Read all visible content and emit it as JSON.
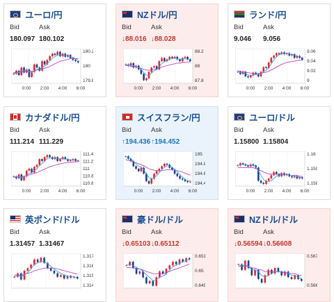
{
  "labels": {
    "bid": "Bid",
    "ask": "Ask"
  },
  "colors": {
    "up_bar": "#e8232b",
    "down_bar": "#1b3f8c",
    "ma_fast": "#3aa0d8",
    "ma_slow": "#c040c0",
    "down_text": "#c0392b",
    "up_text": "#1f74b8"
  },
  "cards": [
    {
      "name": "ユーロ/円",
      "flag": "EU-JP",
      "trend": "neutral",
      "bid": "180.097",
      "ask": "180.102",
      "yticks": [
        "180.2",
        "180",
        "179.8"
      ],
      "xticks": [
        "0:00",
        "2:00",
        "4:00",
        "6:00"
      ],
      "chart_data": {
        "type": "candlestick",
        "ylim": [
          179.75,
          180.3
        ],
        "close": [
          179.9,
          179.95,
          179.88,
          180.0,
          179.92,
          179.97,
          179.85,
          179.93,
          180.05,
          180.0,
          179.95,
          180.1,
          180.05,
          180.12,
          180.18,
          180.22,
          180.2,
          180.25,
          180.18,
          180.22,
          180.17,
          180.2,
          180.15,
          180.12,
          180.1,
          180.08
        ],
        "ma_fast": [
          179.9,
          179.92,
          179.92,
          179.95,
          179.95,
          179.96,
          179.93,
          179.92,
          179.95,
          179.97,
          179.97,
          180.0,
          180.02,
          180.06,
          180.1,
          180.15,
          180.17,
          180.2,
          180.2,
          180.2,
          180.19,
          180.18,
          180.17,
          180.16,
          180.14,
          180.11
        ],
        "ma_slow": [
          179.92,
          179.92,
          179.93,
          179.93,
          179.94,
          179.94,
          179.94,
          179.94,
          179.95,
          179.96,
          179.97,
          179.98,
          179.99,
          180.0,
          180.02,
          180.04,
          180.06,
          180.08,
          180.1,
          180.11,
          180.12,
          180.13,
          180.14,
          180.14,
          180.14,
          180.14
        ]
      }
    },
    {
      "name": "NZドル/円",
      "flag": "NZ-JP",
      "trend": "down",
      "bid": "88.016",
      "ask": "88.028",
      "arrow": "↓",
      "yticks": [
        "88.2",
        "88",
        "87.8"
      ],
      "xticks": [
        "0:00",
        "2:00",
        "4:00",
        "6:00"
      ],
      "chart_data": {
        "type": "candlestick",
        "ylim": [
          87.7,
          88.25
        ],
        "close": [
          88.0,
          87.98,
          88.02,
          87.95,
          87.98,
          87.92,
          87.85,
          87.75,
          87.78,
          87.88,
          87.95,
          87.97,
          87.92,
          88.05,
          88.1,
          88.05,
          88.08,
          88.12,
          88.1,
          88.12,
          88.08,
          88.05,
          88.1,
          88.12,
          88.08,
          88.05
        ],
        "ma_fast": [
          88.0,
          87.99,
          88.0,
          87.98,
          87.97,
          87.95,
          87.92,
          87.87,
          87.83,
          87.83,
          87.86,
          87.9,
          87.92,
          87.97,
          88.01,
          88.04,
          88.06,
          88.08,
          88.09,
          88.1,
          88.09,
          88.08,
          88.08,
          88.09,
          88.08,
          88.07
        ],
        "ma_slow": [
          87.98,
          87.98,
          87.97,
          87.97,
          87.96,
          87.95,
          87.94,
          87.92,
          87.91,
          87.91,
          87.91,
          87.92,
          87.93,
          87.94,
          87.96,
          87.97,
          87.98,
          87.99,
          88.0,
          88.01,
          88.02,
          88.02,
          88.03,
          88.03,
          88.04,
          88.04
        ]
      }
    },
    {
      "name": "ランド/円",
      "flag": "ZA-JP",
      "trend": "neutral",
      "bid": "9.046",
      "ask": "9.056",
      "yticks": [
        "9.06",
        "9.04",
        "9.02",
        "9"
      ],
      "xticks": [
        "0:00",
        "2:00",
        "4:00",
        "6:00"
      ],
      "chart_data": {
        "type": "candlestick",
        "ylim": [
          8.995,
          9.07
        ],
        "close": [
          9.02,
          9.015,
          9.02,
          9.01,
          9.008,
          9.012,
          9.018,
          9.015,
          9.01,
          9.02,
          9.03,
          9.028,
          9.04,
          9.05,
          9.055,
          9.06,
          9.058,
          9.062,
          9.058,
          9.06,
          9.055,
          9.058,
          9.05,
          9.054,
          9.05,
          9.046
        ],
        "ma_fast": [
          9.02,
          9.018,
          9.018,
          9.016,
          9.013,
          9.012,
          9.013,
          9.014,
          9.014,
          9.016,
          9.02,
          9.023,
          9.029,
          9.037,
          9.045,
          9.052,
          9.056,
          9.059,
          9.059,
          9.06,
          9.058,
          9.057,
          9.055,
          9.054,
          9.052,
          9.05
        ],
        "ma_slow": [
          9.022,
          9.021,
          9.02,
          9.019,
          9.018,
          9.017,
          9.017,
          9.017,
          9.016,
          9.017,
          9.018,
          9.019,
          9.021,
          9.024,
          9.027,
          9.03,
          9.033,
          9.036,
          9.038,
          9.04,
          9.041,
          9.042,
          9.043,
          9.044,
          9.045,
          9.045
        ]
      }
    },
    {
      "name": "カナダドル/円",
      "flag": "CA-JP",
      "trend": "neutral",
      "bid": "111.214",
      "ask": "111.229",
      "yticks": [
        "111.4",
        "111.2",
        "111",
        "110.8",
        "110.6"
      ],
      "xticks": [
        "0:00",
        "2:00",
        "4:00",
        "6:00"
      ],
      "chart_data": {
        "type": "candlestick",
        "ylim": [
          110.55,
          111.45
        ],
        "close": [
          110.8,
          110.75,
          110.85,
          110.7,
          110.8,
          110.95,
          111.0,
          110.9,
          111.05,
          111.1,
          111.25,
          111.2,
          111.3,
          111.35,
          111.3,
          111.25,
          111.3,
          111.2,
          111.25,
          111.3,
          111.25,
          111.2,
          111.22,
          111.25,
          111.2,
          111.21
        ],
        "ma_fast": [
          110.8,
          110.78,
          110.8,
          110.77,
          110.78,
          110.83,
          110.88,
          110.9,
          110.95,
          111.0,
          111.08,
          111.13,
          111.2,
          111.26,
          111.28,
          111.28,
          111.29,
          111.27,
          111.26,
          111.26,
          111.25,
          111.24,
          111.23,
          111.23,
          111.22,
          111.21
        ],
        "ma_slow": [
          110.78,
          110.78,
          110.79,
          110.79,
          110.8,
          110.82,
          110.84,
          110.86,
          110.88,
          110.9,
          110.93,
          110.96,
          110.99,
          111.02,
          111.05,
          111.07,
          111.09,
          111.11,
          111.13,
          111.14,
          111.15,
          111.16,
          111.17,
          111.17,
          111.18,
          111.18
        ]
      }
    },
    {
      "name": "スイスフラン/円",
      "flag": "CH-JP",
      "trend": "up",
      "bid": "194.436",
      "ask": "194.452",
      "arrow": "↑",
      "yticks": [
        "195",
        "194.8",
        "194.6",
        "194.4"
      ],
      "xticks": [
        "0:00",
        "2:00",
        "4:00",
        "6:00"
      ],
      "chart_data": {
        "type": "candlestick",
        "ylim": [
          194.35,
          195.05
        ],
        "close": [
          194.95,
          194.9,
          194.85,
          194.75,
          194.7,
          194.65,
          194.72,
          194.6,
          194.45,
          194.4,
          194.5,
          194.6,
          194.65,
          194.7,
          194.75,
          194.8,
          194.78,
          194.72,
          194.68,
          194.6,
          194.55,
          194.5,
          194.48,
          194.45,
          194.43,
          194.44
        ],
        "ma_fast": [
          194.95,
          194.92,
          194.9,
          194.85,
          194.8,
          194.75,
          194.73,
          194.68,
          194.6,
          194.52,
          194.5,
          194.52,
          194.56,
          194.62,
          194.68,
          194.73,
          194.76,
          194.75,
          194.73,
          194.69,
          194.64,
          194.58,
          194.53,
          194.49,
          194.46,
          194.45
        ],
        "ma_slow": [
          194.88,
          194.87,
          194.86,
          194.84,
          194.82,
          194.8,
          194.78,
          194.76,
          194.73,
          194.7,
          194.68,
          194.67,
          194.66,
          194.66,
          194.66,
          194.67,
          194.68,
          194.68,
          194.68,
          194.67,
          194.66,
          194.65,
          194.63,
          194.61,
          194.59,
          194.57
        ]
      }
    },
    {
      "name": "ユーロ/ドル",
      "flag": "EU-US",
      "trend": "neutral",
      "bid": "1.15800",
      "ask": "1.15804",
      "yticks": [
        "1.16",
        "1.159",
        "1.158"
      ],
      "xticks": [
        "0:00",
        "2:00",
        "4:00",
        "6:00"
      ],
      "chart_data": {
        "type": "candlestick",
        "ylim": [
          1.1573,
          1.1605
        ],
        "close": [
          1.1592,
          1.1594,
          1.1593,
          1.1592,
          1.1591,
          1.1593,
          1.1592,
          1.159,
          1.1578,
          1.1576,
          1.1575,
          1.1578,
          1.158,
          1.1583,
          1.1586,
          1.1584,
          1.1582,
          1.1585,
          1.1583,
          1.1584,
          1.1582,
          1.1581,
          1.1582,
          1.158,
          1.1581,
          1.158
        ],
        "ma_fast": [
          1.1592,
          1.1593,
          1.1593,
          1.1593,
          1.1592,
          1.1592,
          1.1592,
          1.1591,
          1.1587,
          1.1583,
          1.1579,
          1.1577,
          1.1577,
          1.1578,
          1.158,
          1.1582,
          1.1583,
          1.1584,
          1.1584,
          1.1584,
          1.1583,
          1.1583,
          1.1582,
          1.1582,
          1.1581,
          1.1581
        ],
        "ma_slow": [
          1.159,
          1.159,
          1.159,
          1.159,
          1.159,
          1.159,
          1.159,
          1.1589,
          1.1588,
          1.1587,
          1.1586,
          1.1585,
          1.1584,
          1.1584,
          1.1584,
          1.1584,
          1.1584,
          1.1584,
          1.1584,
          1.1584,
          1.1583,
          1.1583,
          1.1583,
          1.1583,
          1.1582,
          1.1582
        ]
      }
    },
    {
      "name": "英ポンド/ドル",
      "flag": "GB-US",
      "trend": "neutral",
      "bid": "1.31457",
      "ask": "1.31467",
      "yticks": [
        "1.317",
        "1.316",
        "1.315",
        "1.314"
      ],
      "xticks": [],
      "chart_data": {
        "type": "candlestick",
        "ylim": [
          1.3135,
          1.3175
        ],
        "close": [
          1.3148,
          1.3152,
          1.3145,
          1.3155,
          1.3158,
          1.3162,
          1.3168,
          1.3165,
          1.317,
          1.3164,
          1.3158,
          1.3155,
          1.3152,
          1.3148,
          1.315,
          1.3146,
          1.3149,
          1.3147,
          1.3148,
          1.3146
        ],
        "ma_fast": [
          1.3148,
          1.315,
          1.3148,
          1.315,
          1.3153,
          1.3157,
          1.3162,
          1.3164,
          1.3166,
          1.3165,
          1.3163,
          1.316,
          1.3157,
          1.3154,
          1.3152,
          1.315,
          1.3149,
          1.3148,
          1.3148,
          1.3147
        ],
        "ma_slow": [
          1.315,
          1.315,
          1.315,
          1.3151,
          1.3152,
          1.3153,
          1.3155,
          1.3156,
          1.3157,
          1.3158,
          1.3158,
          1.3158,
          1.3158,
          1.3157,
          1.3156,
          1.3155,
          1.3154,
          1.3153,
          1.3152,
          1.3151
        ]
      }
    },
    {
      "name": "豪ドル/ドル",
      "flag": "AU-US",
      "trend": "down",
      "bid": "0.65103",
      "ask": "0.65112",
      "arrow": "↓",
      "yticks": [
        "0.651",
        "0.65",
        "0.649"
      ],
      "xticks": [],
      "chart_data": {
        "type": "candlestick",
        "ylim": [
          0.6486,
          0.6515
        ],
        "close": [
          0.6505,
          0.6508,
          0.6503,
          0.6498,
          0.65,
          0.6495,
          0.649,
          0.6492,
          0.6488,
          0.6495,
          0.65,
          0.6498,
          0.6502,
          0.6505,
          0.6508,
          0.6506,
          0.651,
          0.6508,
          0.6511,
          0.651
        ],
        "ma_fast": [
          0.6505,
          0.6506,
          0.6505,
          0.6503,
          0.6502,
          0.65,
          0.6497,
          0.6495,
          0.6492,
          0.6493,
          0.6495,
          0.6496,
          0.6498,
          0.6501,
          0.6504,
          0.6505,
          0.6507,
          0.6508,
          0.6509,
          0.651
        ],
        "ma_slow": [
          0.6503,
          0.6503,
          0.6503,
          0.6502,
          0.6502,
          0.6501,
          0.65,
          0.6499,
          0.6498,
          0.6498,
          0.6498,
          0.6498,
          0.6499,
          0.65,
          0.6501,
          0.6502,
          0.6503,
          0.6504,
          0.6505,
          0.6506
        ]
      }
    },
    {
      "name": "NZドル/ドル",
      "flag": "NZ-US",
      "trend": "down",
      "bid": "0.56594",
      "ask": "0.56608",
      "arrow": "↓",
      "yticks": [
        "0.567",
        "0.566"
      ],
      "xticks": [],
      "chart_data": {
        "type": "candlestick",
        "ylim": [
          0.5655,
          0.5674
        ],
        "close": [
          0.5668,
          0.5665,
          0.567,
          0.5666,
          0.5662,
          0.5665,
          0.566,
          0.5658,
          0.5662,
          0.5665,
          0.5663,
          0.5666,
          0.5664,
          0.5662,
          0.5664,
          0.5661,
          0.566,
          0.5662,
          0.566,
          0.5659
        ],
        "ma_fast": [
          0.5668,
          0.5667,
          0.5668,
          0.5667,
          0.5665,
          0.5665,
          0.5664,
          0.5662,
          0.5661,
          0.5662,
          0.5663,
          0.5664,
          0.5664,
          0.5664,
          0.5664,
          0.5663,
          0.5662,
          0.5662,
          0.5661,
          0.566
        ],
        "ma_slow": [
          0.5667,
          0.5667,
          0.5667,
          0.5667,
          0.5666,
          0.5666,
          0.5665,
          0.5665,
          0.5664,
          0.5664,
          0.5664,
          0.5664,
          0.5664,
          0.5664,
          0.5663,
          0.5663,
          0.5663,
          0.5663,
          0.5662,
          0.5662
        ]
      }
    }
  ]
}
